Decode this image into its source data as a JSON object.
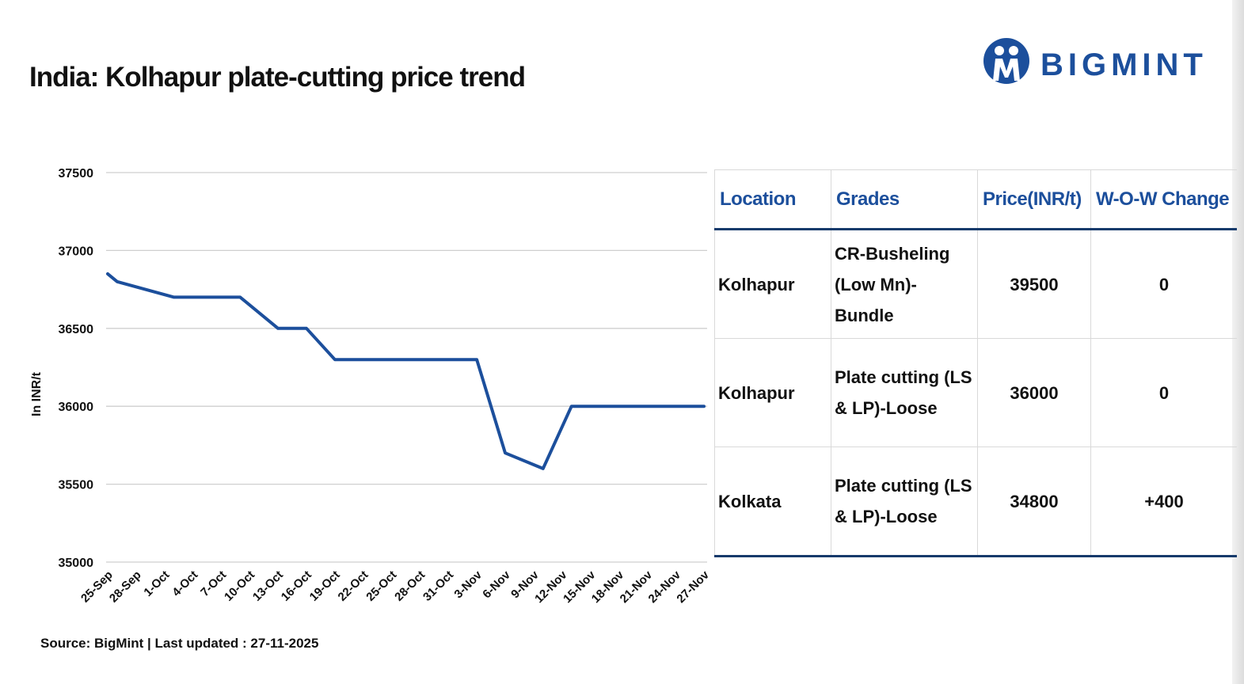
{
  "title": "India: Kolhapur plate-cutting price trend",
  "logo": {
    "text": "BIGMINT",
    "icon": "bigmint-logo-icon",
    "color": "#1c4f9c"
  },
  "source": "Source: BigMint | Last updated : 27-11-2025",
  "chart_data": {
    "type": "line",
    "title": "India: Kolhapur plate-cutting price trend",
    "xlabel": "",
    "ylabel": "In INR/t",
    "ylim": [
      35000,
      37500
    ],
    "yticks": [
      35000,
      35500,
      36000,
      36500,
      37000,
      37500
    ],
    "grid": true,
    "line_color": "#1c4f9c",
    "categories": [
      "25-Sep",
      "28-Sep",
      "1-Oct",
      "4-Oct",
      "7-Oct",
      "10-Oct",
      "13-Oct",
      "16-Oct",
      "19-Oct",
      "22-Oct",
      "25-Oct",
      "28-Oct",
      "31-Oct",
      "3-Nov",
      "6-Nov",
      "9-Nov",
      "12-Nov",
      "15-Nov",
      "18-Nov",
      "21-Nov",
      "24-Nov",
      "27-Nov"
    ],
    "series": [
      {
        "name": "",
        "points": [
          {
            "x": "25-Sep",
            "y": 36850
          },
          {
            "x": "26-Sep",
            "y": 36800
          },
          {
            "x": "2-Oct",
            "y": 36700
          },
          {
            "x": "9-Oct",
            "y": 36700
          },
          {
            "x": "13-Oct",
            "y": 36500
          },
          {
            "x": "16-Oct",
            "y": 36500
          },
          {
            "x": "19-Oct",
            "y": 36300
          },
          {
            "x": "2-Nov",
            "y": 36300
          },
          {
            "x": "3-Nov",
            "y": 36300
          },
          {
            "x": "6-Nov",
            "y": 35700
          },
          {
            "x": "10-Nov",
            "y": 35600
          },
          {
            "x": "13-Nov",
            "y": 36000
          },
          {
            "x": "27-Nov",
            "y": 36000
          }
        ]
      }
    ]
  },
  "table": {
    "headers": [
      "Location",
      "Grades",
      "Price(INR/t)",
      "W-O-W Change"
    ],
    "rows": [
      {
        "location": "Kolhapur",
        "grade_line1": "CR-Busheling",
        "grade_line2": "(Low Mn)-Bundle",
        "price": "39500",
        "change": "0"
      },
      {
        "location": "Kolhapur",
        "grade_line1": "Plate cutting (LS",
        "grade_line2": "& LP)-Loose",
        "price": "36000",
        "change": "0"
      },
      {
        "location": "Kolkata",
        "grade_line1": "Plate cutting (LS",
        "grade_line2": "& LP)-Loose",
        "price": "34800",
        "change": "+400"
      }
    ]
  }
}
